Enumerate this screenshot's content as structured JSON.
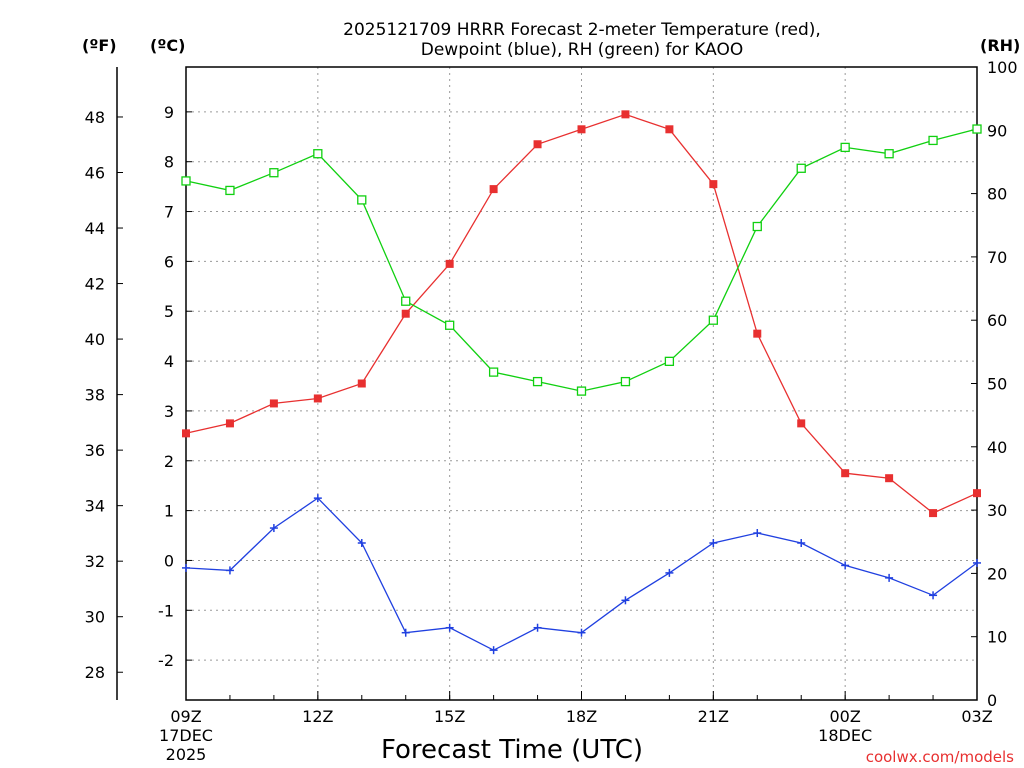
{
  "chart_data": {
    "type": "line",
    "title_line1": "2025121709 HRRR Forecast 2-meter Temperature (red),",
    "title_line2": "Dewpoint (blue), RH (green) for KAOO",
    "xlabel": "Forecast Time (UTC)",
    "credit": "coolwx.com/models",
    "unit_labels": {
      "fahrenheit": "(ºF)",
      "celsius": "(ºC)",
      "rh": "(RH)"
    },
    "x_hours": [
      0,
      1,
      2,
      3,
      4,
      5,
      6,
      7,
      8,
      9,
      10,
      11,
      12,
      13,
      14,
      15,
      16,
      17,
      18
    ],
    "x_ticks": [
      {
        "hour": 0,
        "label": "09Z",
        "sub1": "17DEC",
        "sub2": "2025"
      },
      {
        "hour": 3,
        "label": "12Z",
        "sub1": "",
        "sub2": ""
      },
      {
        "hour": 6,
        "label": "15Z",
        "sub1": "",
        "sub2": ""
      },
      {
        "hour": 9,
        "label": "18Z",
        "sub1": "",
        "sub2": ""
      },
      {
        "hour": 12,
        "label": "21Z",
        "sub1": "",
        "sub2": ""
      },
      {
        "hour": 15,
        "label": "00Z",
        "sub1": "18DEC",
        "sub2": ""
      },
      {
        "hour": 18,
        "label": "03Z",
        "sub1": "",
        "sub2": ""
      }
    ],
    "celsius_axis": {
      "range": [
        -2.8,
        9.9
      ],
      "ticks": [
        "-2",
        "-1",
        "0",
        "1",
        "2",
        "3",
        "4",
        "5",
        "6",
        "7",
        "8",
        "9"
      ]
    },
    "fahrenheit_axis": {
      "range": [
        27.0,
        49.8
      ],
      "ticks": [
        "28",
        "30",
        "32",
        "34",
        "36",
        "38",
        "40",
        "42",
        "44",
        "46",
        "48"
      ]
    },
    "rh_axis": {
      "range": [
        0,
        100
      ],
      "ticks": [
        "0",
        "10",
        "20",
        "30",
        "40",
        "50",
        "60",
        "70",
        "80",
        "90",
        "100"
      ]
    },
    "series": [
      {
        "name": "Temperature",
        "axis": "celsius",
        "color": "#e83030",
        "marker": "filled-square",
        "values": [
          2.55,
          2.75,
          3.15,
          3.25,
          3.55,
          4.95,
          5.95,
          7.45,
          8.35,
          8.65,
          8.95,
          8.65,
          7.55,
          4.55,
          2.75,
          1.75,
          1.65,
          0.95,
          1.35
        ]
      },
      {
        "name": "Dewpoint",
        "axis": "celsius",
        "color": "#2040e0",
        "marker": "plus",
        "values": [
          -0.15,
          -0.2,
          0.65,
          1.25,
          0.35,
          -1.45,
          -1.35,
          -1.8,
          -1.35,
          -1.45,
          -0.8,
          -0.25,
          0.35,
          0.55,
          0.35,
          -0.1,
          -0.35,
          -0.7,
          -0.05
        ]
      },
      {
        "name": "RH",
        "axis": "rh",
        "color": "#10d010",
        "marker": "open-square",
        "values": [
          82.0,
          80.5,
          83.3,
          86.3,
          79.0,
          63.0,
          59.2,
          51.8,
          50.3,
          48.8,
          50.3,
          53.5,
          60.0,
          74.8,
          84.0,
          87.3,
          86.3,
          88.4,
          90.2
        ]
      }
    ]
  }
}
